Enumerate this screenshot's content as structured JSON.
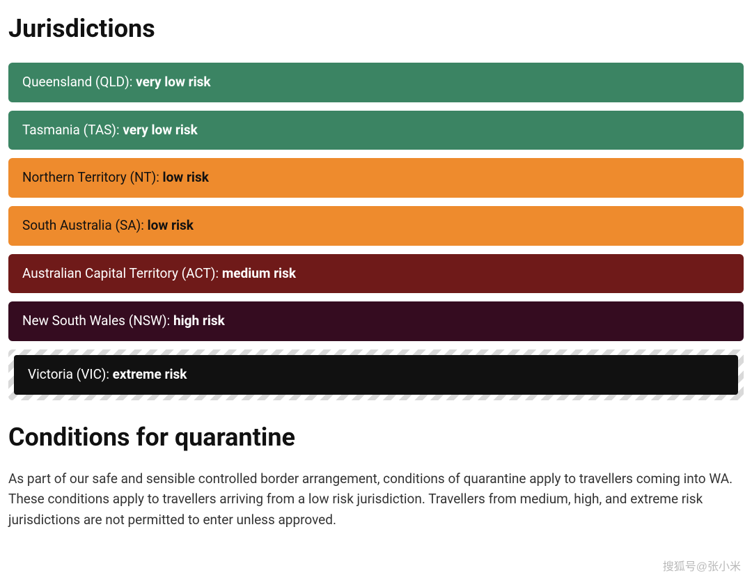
{
  "headings": {
    "jurisdictions": "Jurisdictions",
    "conditions": "Conditions for quarantine"
  },
  "jurisdictions": [
    {
      "name": "Queensland (QLD): ",
      "risk": "very low risk",
      "bg": "#3b8463",
      "text": "#ffffff",
      "hazard": false
    },
    {
      "name": "Tasmania (TAS): ",
      "risk": "very low risk",
      "bg": "#3b8463",
      "text": "#ffffff",
      "hazard": false
    },
    {
      "name": "Northern Territory (NT): ",
      "risk": "low risk",
      "bg": "#ee8b2d",
      "text": "#111111",
      "hazard": false
    },
    {
      "name": "South Australia (SA): ",
      "risk": "low risk",
      "bg": "#ee8b2d",
      "text": "#111111",
      "hazard": false
    },
    {
      "name": "Australian Capital Territory (ACT): ",
      "risk": "medium risk",
      "bg": "#6f1a19",
      "text": "#ffffff",
      "hazard": false
    },
    {
      "name": "New South Wales (NSW): ",
      "risk": "high risk",
      "bg": "#350c20",
      "text": "#ffffff",
      "hazard": false
    },
    {
      "name": "Victoria (VIC): ",
      "risk": "extreme risk",
      "bg": "#111111",
      "text": "#ffffff",
      "hazard": true
    }
  ],
  "body_text": "As part of our safe and sensible controlled border arrangement, conditions of quarantine apply to travellers coming into WA. These conditions apply to travellers arriving from a low risk jurisdiction. Travellers from medium, high, and extreme risk jurisdictions are not permitted to enter unless approved.",
  "watermark": "搜狐号@张小米",
  "colors": {
    "page_bg": "#ffffff",
    "heading_color": "#111111",
    "body_color": "#333333",
    "hazard_stripe_a": "#d9d9d9",
    "hazard_stripe_b": "#ffffff"
  },
  "typography": {
    "heading_fontsize": 36,
    "heading_weight": 700,
    "item_fontsize": 19,
    "body_fontsize": 19
  }
}
